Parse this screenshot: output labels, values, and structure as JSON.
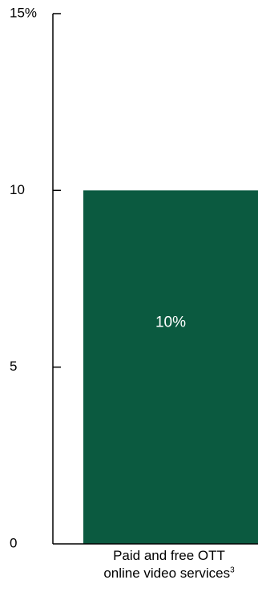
{
  "chart_data": {
    "type": "bar",
    "categories": [
      "Paid and free OTT online video services"
    ],
    "category_line1": "Paid and free OTT",
    "category_line2": "online video services",
    "category_footnote": "3",
    "values": [
      10
    ],
    "data_labels": [
      "10%"
    ],
    "ylim": [
      0,
      15
    ],
    "yticks": [
      0,
      5,
      10,
      15
    ],
    "ytick_labels": [
      "0",
      "5",
      "10",
      "15%"
    ],
    "grid": false,
    "colors": {
      "bar": "#0b5a40",
      "axis": "#000000",
      "data_label": "#ffffff"
    }
  }
}
